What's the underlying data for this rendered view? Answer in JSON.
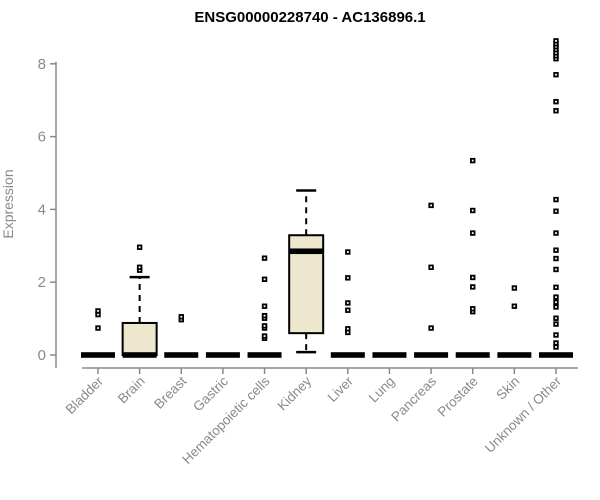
{
  "chart_data": {
    "type": "boxplot",
    "title": "ENSG00000228740 - AC136896.1",
    "ylabel": "Expression",
    "xlabel": "",
    "ylim": [
      0,
      8.7
    ],
    "yticks": [
      0,
      2,
      4,
      6,
      8
    ],
    "grid": false,
    "legend": "none",
    "categories": [
      "Bladder",
      "Brain",
      "Breast",
      "Gastric",
      "Hematopoietic cells",
      "Kidney",
      "Liver",
      "Lung",
      "Pancreas",
      "Prostate",
      "Skin",
      "Unknown / Other"
    ],
    "boxes": [
      {
        "category": "Bladder",
        "q1": 0,
        "median": 0,
        "q3": 0,
        "whisker_low": 0,
        "whisker_high": 0,
        "outliers": [
          0.74,
          1.11,
          1.21
        ]
      },
      {
        "category": "Brain",
        "q1": 0,
        "median": 0,
        "q3": 0.88,
        "whisker_low": 0,
        "whisker_high": 2.14,
        "outliers": [
          2.33,
          2.41,
          2.96
        ]
      },
      {
        "category": "Breast",
        "q1": 0,
        "median": 0,
        "q3": 0,
        "whisker_low": 0,
        "whisker_high": 0,
        "outliers": [
          0.97,
          1.05
        ]
      },
      {
        "category": "Gastric",
        "q1": 0,
        "median": 0,
        "q3": 0,
        "whisker_low": 0,
        "whisker_high": 0,
        "outliers": []
      },
      {
        "category": "Hematopoietic cells",
        "q1": 0,
        "median": 0,
        "q3": 0,
        "whisker_low": 0,
        "whisker_high": 0,
        "outliers": [
          0.46,
          0.52,
          0.74,
          0.8,
          1.01,
          1.08,
          1.34,
          2.08,
          2.66
        ]
      },
      {
        "category": "Kidney",
        "q1": 0.6,
        "median": 2.85,
        "q3": 3.29,
        "whisker_low": 0.08,
        "whisker_high": 4.52,
        "outliers": []
      },
      {
        "category": "Liver",
        "q1": 0,
        "median": 0,
        "q3": 0,
        "whisker_low": 0,
        "whisker_high": 0,
        "outliers": [
          0.62,
          0.72,
          1.23,
          1.43,
          2.12,
          2.83
        ]
      },
      {
        "category": "Lung",
        "q1": 0,
        "median": 0,
        "q3": 0,
        "whisker_low": 0,
        "whisker_high": 0,
        "outliers": []
      },
      {
        "category": "Pancreas",
        "q1": 0,
        "median": 0,
        "q3": 0,
        "whisker_low": 0,
        "whisker_high": 0,
        "outliers": [
          0.74,
          2.41,
          4.11
        ]
      },
      {
        "category": "Prostate",
        "q1": 0,
        "median": 0,
        "q3": 0,
        "whisker_low": 0,
        "whisker_high": 0,
        "outliers": [
          1.19,
          1.27,
          1.87,
          2.13,
          3.35,
          3.97,
          5.34
        ]
      },
      {
        "category": "Skin",
        "q1": 0,
        "median": 0,
        "q3": 0,
        "whisker_low": 0,
        "whisker_high": 0,
        "outliers": [
          1.34,
          1.84
        ]
      },
      {
        "category": "Unknown / Other",
        "q1": 0,
        "median": 0,
        "q3": 0,
        "whisker_low": 0,
        "whisker_high": 0,
        "outliers": [
          0.22,
          0.33,
          0.55,
          0.85,
          1.01,
          1.32,
          1.45,
          1.59,
          1.86,
          2.35,
          2.65,
          2.88,
          3.35,
          3.95,
          4.27,
          6.71,
          6.96,
          7.7,
          8.14,
          8.22,
          8.3,
          8.39,
          8.47,
          8.55,
          8.63
        ]
      }
    ],
    "colors": {
      "box_fill": "#EDE7CE",
      "box_border": "#000000",
      "median": "#000000",
      "outlier_marker": "#000000",
      "axis": "#8a8a8a",
      "tick_label": "#8a8a8a",
      "title": "#000000",
      "background": "#ffffff"
    }
  }
}
